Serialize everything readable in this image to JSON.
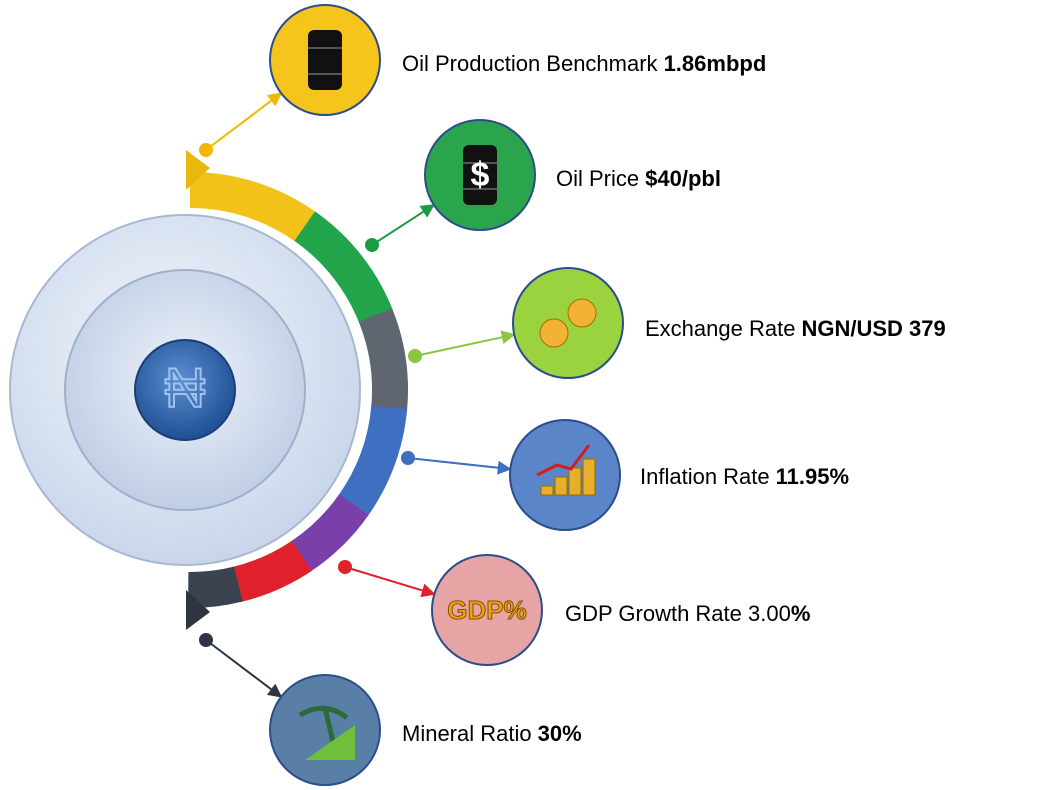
{
  "center": {
    "symbol": "₦"
  },
  "items": [
    {
      "label": "Oil Production Benchmark",
      "value": "1.86mbpd"
    },
    {
      "label": "Oil Price",
      "value": "$40/pbl",
      "icon_text": "$"
    },
    {
      "label": "Exchange Rate",
      "value": "NGN/USD 379"
    },
    {
      "label": "Inflation Rate",
      "value": "11.95%"
    },
    {
      "label": "GDP Growth Rate 3.00",
      "value": "%",
      "icon_text": "GDP%"
    },
    {
      "label": "Mineral Ratio",
      "value": "30%"
    }
  ]
}
